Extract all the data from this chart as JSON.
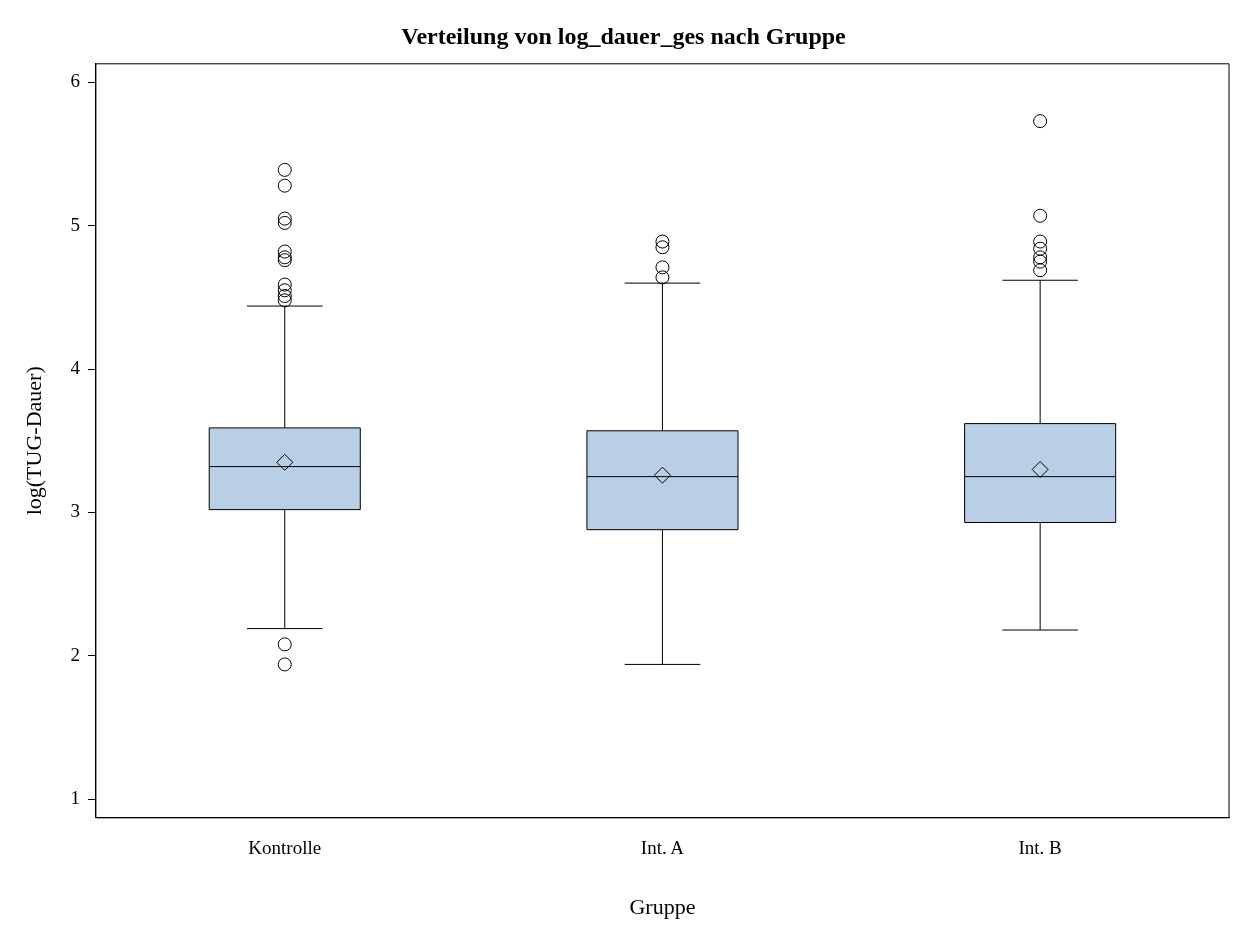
{
  "chart_data": {
    "type": "box",
    "title": "Verteilung von log_dauer_ges nach Gruppe",
    "xlabel": "Gruppe",
    "ylabel": "log(TUG-Dauer)",
    "categories": [
      "Kontrolle",
      "Int. A",
      "Int. B"
    ],
    "ylim": [
      0.87,
      6.13
    ],
    "yticks": [
      1,
      2,
      3,
      4,
      5,
      6
    ],
    "series": [
      {
        "color": "#b9cfe6",
        "boxes": [
          {
            "low": 2.19,
            "q1": 3.02,
            "median": 3.32,
            "q3": 3.59,
            "high": 4.44,
            "mean": 3.35,
            "outliers": [
              1.94,
              2.08,
              4.48,
              4.51,
              4.55,
              4.59,
              4.76,
              4.78,
              4.82,
              5.02,
              5.05,
              5.28,
              5.39
            ]
          },
          {
            "low": 1.94,
            "q1": 2.88,
            "median": 3.25,
            "q3": 3.57,
            "high": 4.6,
            "mean": 3.26,
            "outliers": [
              4.64,
              4.71,
              4.85,
              4.89
            ]
          },
          {
            "low": 2.18,
            "q1": 2.93,
            "median": 3.25,
            "q3": 3.62,
            "high": 4.62,
            "mean": 3.3,
            "outliers": [
              4.69,
              4.75,
              4.78,
              4.84,
              4.89,
              5.07,
              5.73
            ]
          }
        ]
      }
    ]
  }
}
